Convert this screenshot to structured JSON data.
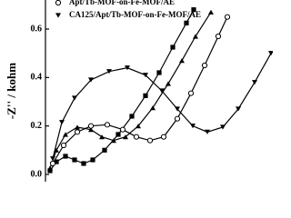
{
  "chart_data": {
    "type": "line",
    "ylabel": "-Z'' / kohm",
    "xlim": [
      0,
      2.5
    ],
    "ylim": [
      -0.03,
      0.72
    ],
    "yticks": [
      {
        "value": 0,
        "label": "0.0"
      },
      0.2,
      0.4,
      0.6
    ],
    "series": [
      {
        "color": "#000000",
        "marker": "square",
        "x": [
          0.05,
          0.12,
          0.22,
          0.32,
          0.42,
          0.52,
          0.65,
          0.8,
          0.95,
          1.1,
          1.25,
          1.4,
          1.55,
          1.63
        ],
        "values": [
          0.015,
          0.052,
          0.075,
          0.06,
          0.045,
          0.06,
          0.1,
          0.165,
          0.24,
          0.325,
          0.42,
          0.525,
          0.625,
          0.68
        ]
      },
      {
        "color": "#000000",
        "marker": "triangle-up",
        "x": [
          0.05,
          0.12,
          0.22,
          0.35,
          0.5,
          0.62,
          0.75,
          0.88,
          1.02,
          1.18,
          1.35,
          1.5,
          1.65,
          1.82
        ],
        "values": [
          0.026,
          0.1,
          0.165,
          0.195,
          0.185,
          0.155,
          0.14,
          0.155,
          0.2,
          0.275,
          0.375,
          0.47,
          0.57,
          0.67
        ]
      },
      {
        "name": "Apt/Tb-MOF-on-Fe-MOF/AE",
        "color": "#000000",
        "marker": "circle",
        "x": [
          0.08,
          0.2,
          0.35,
          0.5,
          0.68,
          0.85,
          1.0,
          1.15,
          1.3,
          1.45,
          1.6,
          1.75,
          1.9,
          2.0
        ],
        "values": [
          0.045,
          0.12,
          0.175,
          0.2,
          0.205,
          0.185,
          0.155,
          0.14,
          0.155,
          0.23,
          0.335,
          0.45,
          0.57,
          0.65
        ]
      },
      {
        "name": "CA125/Apt/Tb-MOF-on-Fe-MOF/AE",
        "color": "#000000",
        "marker": "triangle-down",
        "x": [
          0.08,
          0.18,
          0.32,
          0.5,
          0.7,
          0.9,
          1.1,
          1.28,
          1.45,
          1.62,
          1.78,
          1.95,
          2.12,
          2.3,
          2.48
        ],
        "values": [
          0.065,
          0.215,
          0.315,
          0.39,
          0.425,
          0.44,
          0.41,
          0.345,
          0.27,
          0.2,
          0.175,
          0.195,
          0.27,
          0.38,
          0.5
        ]
      }
    ]
  }
}
